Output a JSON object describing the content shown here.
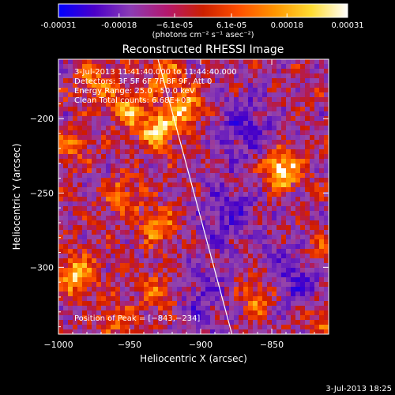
{
  "chart_data": {
    "type": "heatmap",
    "title": "Reconstructed RHESSI Image",
    "xlabel": "Heliocentric X (arcsec)",
    "ylabel": "Heliocentric Y (arcsec)",
    "xlim": [
      -1000,
      -810
    ],
    "ylim": [
      -345,
      -160
    ],
    "x_ticks": [
      -1000,
      -950,
      -900,
      -850
    ],
    "x_tick_labels": [
      "−1000",
      "−950",
      "−900",
      "−850"
    ],
    "y_ticks": [
      -200,
      -250,
      -300
    ],
    "y_tick_labels": [
      "−200",
      "−250",
      "−300"
    ],
    "colorbar": {
      "range": [
        -0.00031,
        0.00031
      ],
      "ticks": [
        -0.00031,
        -0.00018,
        -6.1e-05,
        6.1e-05,
        0.00018,
        0.00031
      ],
      "tick_labels": [
        "-0.00031",
        "-0.00018",
        "−6.1e-05",
        "6.1e-05",
        "0.00018",
        "0.00031"
      ],
      "unit_label": "(photons cm⁻² s⁻¹ asec⁻²)",
      "colors": [
        "#0000ff",
        "#4b00c8",
        "#8c3cb4",
        "#b4186e",
        "#cc2000",
        "#ff5000",
        "#ff9600",
        "#ffdc32",
        "#ffffff"
      ]
    },
    "annotations": [
      "3-Jul-2013 11:41:40.000 to 11:44:40.000",
      "Detectors: 3F 5F 6F 7F 8F 9F, Att 0",
      "Energy Range: 25.0 - 50.0 keV",
      "Clean    Total counts: 6.68E+03"
    ],
    "peak_label": "Position of Peak = [−843,−234]",
    "peak": [
      -843,
      -234
    ],
    "limb_line": [
      [
        -930,
        -160
      ],
      [
        -878,
        -345
      ]
    ],
    "sources": [
      {
        "x": -843,
        "y": -234,
        "value": 1.0
      },
      {
        "x": -930,
        "y": -207,
        "value": 0.85
      },
      {
        "x": -910,
        "y": -194,
        "value": 0.7
      },
      {
        "x": -988,
        "y": -305,
        "value": 0.8
      },
      {
        "x": -952,
        "y": -194,
        "value": 0.6
      },
      {
        "x": -930,
        "y": -272,
        "value": 0.55
      },
      {
        "x": -860,
        "y": -320,
        "value": 0.55
      },
      {
        "x": -928,
        "y": -318,
        "value": 0.5
      },
      {
        "x": -955,
        "y": -252,
        "value": 0.45
      },
      {
        "x": -975,
        "y": -175,
        "value": 0.5
      },
      {
        "x": -925,
        "y": -170,
        "value": 0.5
      },
      {
        "x": -818,
        "y": -290,
        "value": 0.5
      },
      {
        "x": -815,
        "y": -335,
        "value": 0.45
      },
      {
        "x": -990,
        "y": -220,
        "value": 0.4
      },
      {
        "x": -960,
        "y": -335,
        "value": 0.4
      }
    ],
    "negative_regions": [
      {
        "x": -870,
        "y": -205,
        "value": 0.45
      },
      {
        "x": -880,
        "y": -265,
        "value": 0.4
      },
      {
        "x": -830,
        "y": -305,
        "value": 0.5
      },
      {
        "x": -900,
        "y": -320,
        "value": 0.35
      }
    ]
  },
  "footer": {
    "date": "3-Jul-2013 18:25"
  }
}
